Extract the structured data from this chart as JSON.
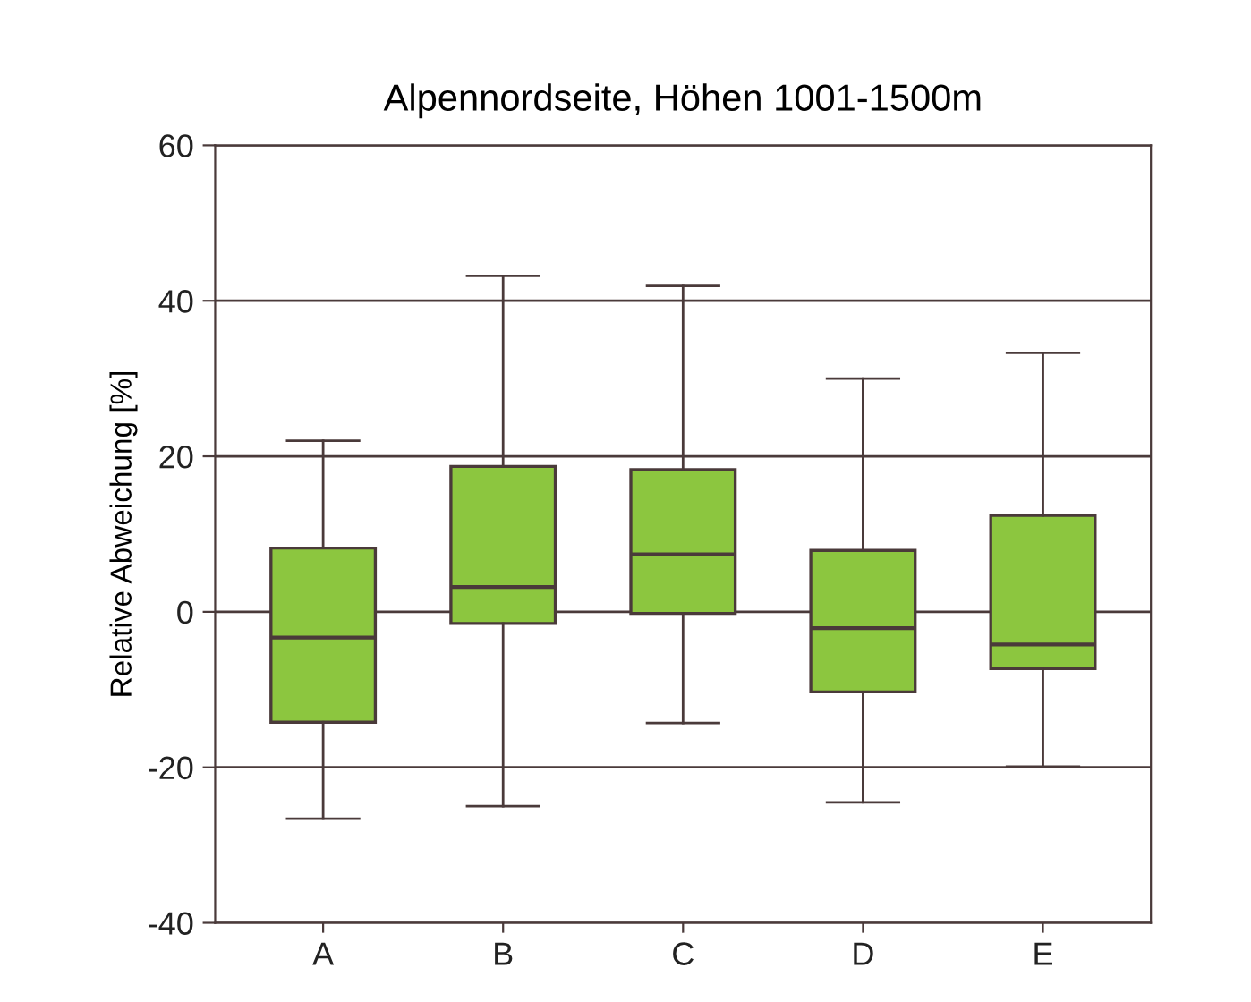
{
  "chart_data": {
    "type": "box",
    "title": "Alpennordseite, Höhen 1001-1500m",
    "ylabel": "Relative Abweichung [%]",
    "categories": [
      "A",
      "B",
      "C",
      "D",
      "E"
    ],
    "boxes": [
      {
        "low": -26.6,
        "q1": -14.2,
        "median": -3.3,
        "q3": 8.2,
        "high": 22.0
      },
      {
        "low": -25.0,
        "q1": -1.5,
        "median": 3.2,
        "q3": 18.7,
        "high": 43.2
      },
      {
        "low": -14.3,
        "q1": -0.2,
        "median": 7.4,
        "q3": 18.3,
        "high": 41.9
      },
      {
        "low": -24.5,
        "q1": -10.3,
        "median": -2.1,
        "q3": 7.9,
        "high": 30.0
      },
      {
        "low": -19.9,
        "q1": -7.3,
        "median": -4.2,
        "q3": 12.4,
        "high": 33.3
      }
    ],
    "color": "#8cc63f",
    "ylim": [
      -40,
      60
    ],
    "yticks": [
      -40,
      -20,
      0,
      20,
      40,
      60
    ],
    "grid": "y"
  }
}
